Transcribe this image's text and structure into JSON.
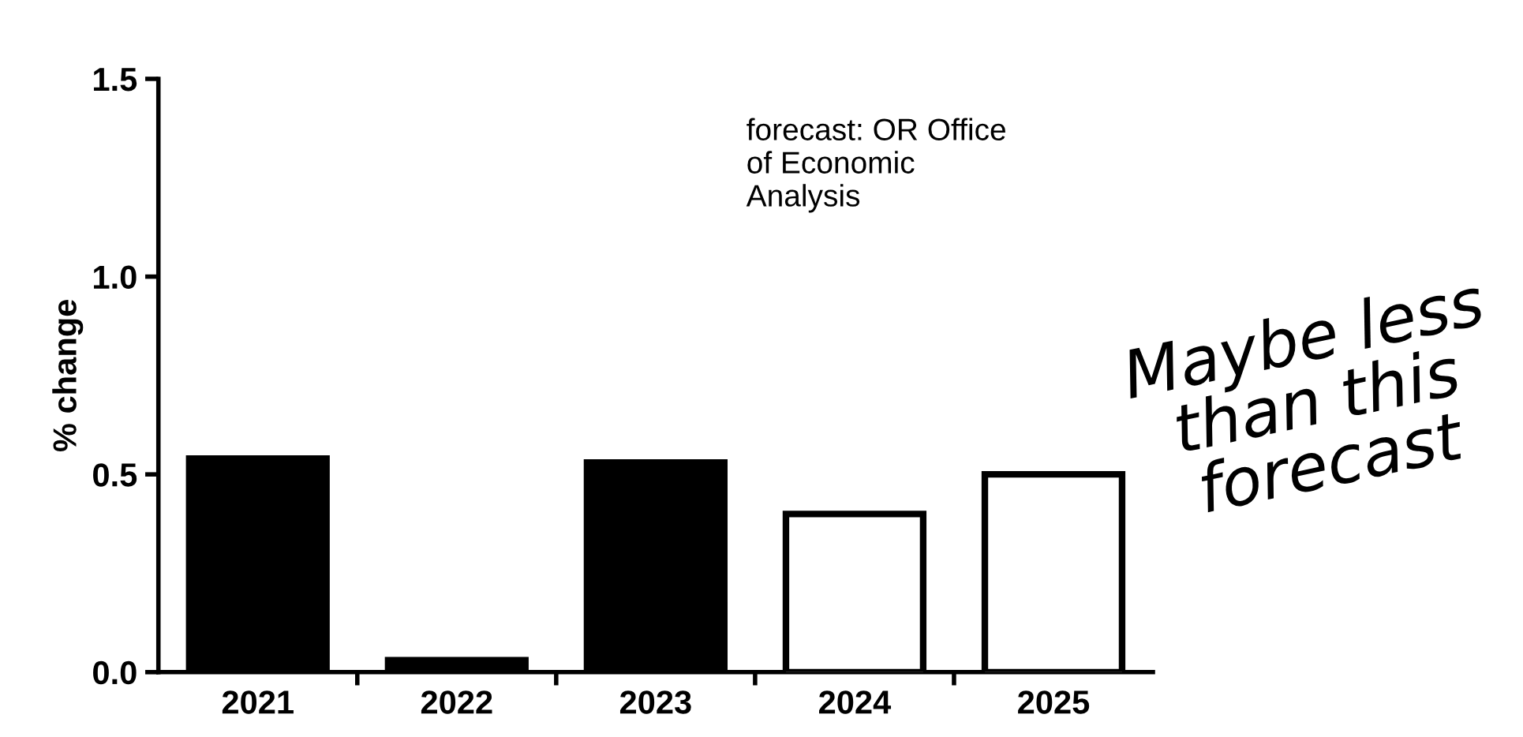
{
  "chart_data": {
    "type": "bar",
    "ylabel": "% change",
    "categories": [
      "2021",
      "2022",
      "2023",
      "2024",
      "2025"
    ],
    "values": [
      0.54,
      0.03,
      0.53,
      0.4,
      0.5
    ],
    "colors": [
      "#000000",
      "#000000",
      "#000000",
      "#ffffff",
      "#ffffff"
    ],
    "ylim": [
      0,
      1.5
    ],
    "yticks": [
      {
        "value": 0,
        "label": "0.0"
      },
      {
        "value": 0.5,
        "label": "0.5"
      },
      {
        "value": 1.0,
        "label": "1.0"
      },
      {
        "value": 1.5,
        "label": "1.5"
      }
    ],
    "grid": false,
    "annotations": [
      "forecast: OR Office\nof Economic\nAnalysis",
      "Maybe less\nthan this\nforecast"
    ]
  }
}
